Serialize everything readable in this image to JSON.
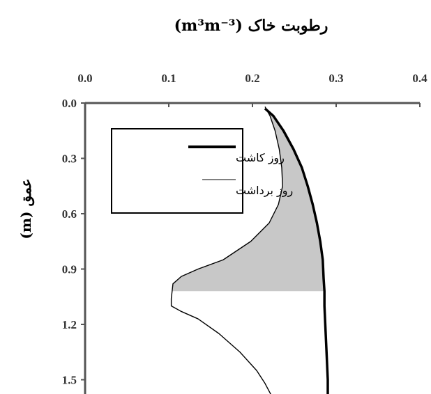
{
  "chart_data": {
    "type": "line",
    "title": "رطوبت خاک (m³m⁻³)",
    "xlabel": "",
    "ylabel": "عمق (m)",
    "xlim": [
      0.0,
      0.4
    ],
    "ylim": [
      0.0,
      1.6
    ],
    "x_axis_position": "top",
    "y_axis_inverted": true,
    "xticks": [
      "0.0",
      "0.1",
      "0.2",
      "0.3",
      "0.4"
    ],
    "yticks": [
      "0.0",
      "0.3",
      "0.6",
      "0.9",
      "1.2",
      "1.5"
    ],
    "grid": false,
    "legend_position": "top-left",
    "series": [
      {
        "name": "روز کاشت",
        "style": "thick",
        "color": "#000000",
        "points": [
          [
            0.215,
            0.03
          ],
          [
            0.225,
            0.07
          ],
          [
            0.237,
            0.15
          ],
          [
            0.249,
            0.25
          ],
          [
            0.259,
            0.35
          ],
          [
            0.266,
            0.45
          ],
          [
            0.272,
            0.55
          ],
          [
            0.277,
            0.65
          ],
          [
            0.281,
            0.75
          ],
          [
            0.284,
            0.85
          ],
          [
            0.285,
            0.95
          ],
          [
            0.286,
            1.02
          ],
          [
            0.286,
            1.1
          ],
          [
            0.287,
            1.2
          ],
          [
            0.288,
            1.3
          ],
          [
            0.289,
            1.4
          ],
          [
            0.29,
            1.5
          ],
          [
            0.29,
            1.6
          ]
        ]
      },
      {
        "name": "روز برداشت",
        "style": "thin",
        "color": "#000000",
        "points": [
          [
            0.215,
            0.02
          ],
          [
            0.221,
            0.07
          ],
          [
            0.227,
            0.15
          ],
          [
            0.232,
            0.25
          ],
          [
            0.235,
            0.35
          ],
          [
            0.236,
            0.45
          ],
          [
            0.231,
            0.55
          ],
          [
            0.22,
            0.65
          ],
          [
            0.198,
            0.75
          ],
          [
            0.165,
            0.85
          ],
          [
            0.135,
            0.9
          ],
          [
            0.115,
            0.94
          ],
          [
            0.105,
            0.98
          ],
          [
            0.104,
            1.02
          ],
          [
            0.103,
            1.06
          ],
          [
            0.103,
            1.1
          ],
          [
            0.115,
            1.13
          ],
          [
            0.135,
            1.17
          ],
          [
            0.16,
            1.25
          ],
          [
            0.185,
            1.35
          ],
          [
            0.205,
            1.45
          ],
          [
            0.215,
            1.52
          ],
          [
            0.222,
            1.58
          ]
        ]
      }
    ],
    "shaded_region": {
      "color": "#c8c8c8",
      "between": [
        "روز کاشت",
        "روز برداشت"
      ],
      "depth_range": [
        0.02,
        1.02
      ]
    }
  }
}
